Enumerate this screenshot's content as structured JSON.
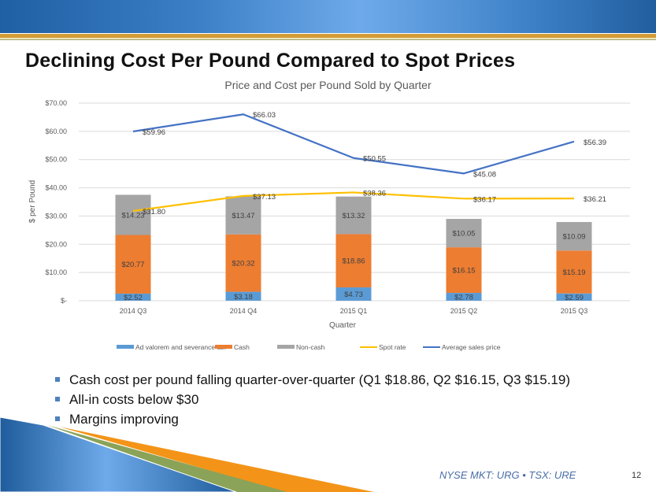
{
  "slide": {
    "title": "Declining Cost Per Pound Compared to Spot Prices",
    "bullets": [
      "Cash cost per pound falling quarter-over-quarter (Q1 $18.86, Q2 $16.15, Q3 $15.19)",
      "All-in costs below $30",
      "Margins improving"
    ],
    "footer_ticker": "NYSE MKT: URG • TSX: URE",
    "page_number": "12",
    "colors": {
      "header_blue": "#3c7fc6",
      "gold": "#d39c36",
      "bullet": "#4e81bd",
      "footer_orange": "#f39418",
      "footer_green": "#8aa358"
    }
  },
  "chart_data": {
    "type": "bar",
    "stacked": true,
    "title": "Price and Cost per Pound Sold by Quarter",
    "xlabel": "Quarter",
    "ylabel": "$ per Pound",
    "ylim": [
      0,
      70
    ],
    "yticks": [
      0,
      10,
      20,
      30,
      40,
      50,
      60,
      70
    ],
    "ytick_labels": [
      "$-",
      "$10.00",
      "$20.00",
      "$30.00",
      "$40.00",
      "$50.00",
      "$60.00",
      "$70.00"
    ],
    "grid": true,
    "legend_position": "bottom",
    "categories": [
      "2014 Q3",
      "2014 Q4",
      "2015 Q1",
      "2015 Q2",
      "2015 Q3"
    ],
    "series": [
      {
        "name": "Ad valorem and severance tax",
        "kind": "bar",
        "color": "#5b9bd5",
        "values": [
          2.52,
          3.18,
          4.73,
          2.78,
          2.59
        ],
        "labels": [
          "$2.52",
          "$3.18",
          "$4.73",
          "$2.78",
          "$2.59"
        ]
      },
      {
        "name": "Cash",
        "kind": "bar",
        "color": "#ed7d31",
        "values": [
          20.77,
          20.32,
          18.86,
          16.15,
          15.19
        ],
        "labels": [
          "$20.77",
          "$20.32",
          "$18.86",
          "$16.15",
          "$15.19"
        ]
      },
      {
        "name": "Non-cash",
        "kind": "bar",
        "color": "#a5a5a5",
        "values": [
          14.23,
          13.47,
          13.32,
          10.05,
          10.09
        ],
        "labels": [
          "$14.23",
          "$13.47",
          "$13.32",
          "$10.05",
          "$10.09"
        ]
      },
      {
        "name": "Spot rate",
        "kind": "line",
        "color": "#ffc000",
        "values": [
          31.8,
          37.13,
          38.36,
          36.17,
          36.21
        ],
        "labels": [
          "$31.80",
          "$37.13",
          "$38.36",
          "$36.17",
          "$36.21"
        ]
      },
      {
        "name": "Average sales price",
        "kind": "line",
        "color": "#4472c4",
        "values": [
          59.96,
          66.03,
          50.55,
          45.08,
          56.39
        ],
        "labels": [
          "$59.96",
          "$66.03",
          "$50.55",
          "$45.08",
          "$56.39"
        ]
      }
    ]
  }
}
